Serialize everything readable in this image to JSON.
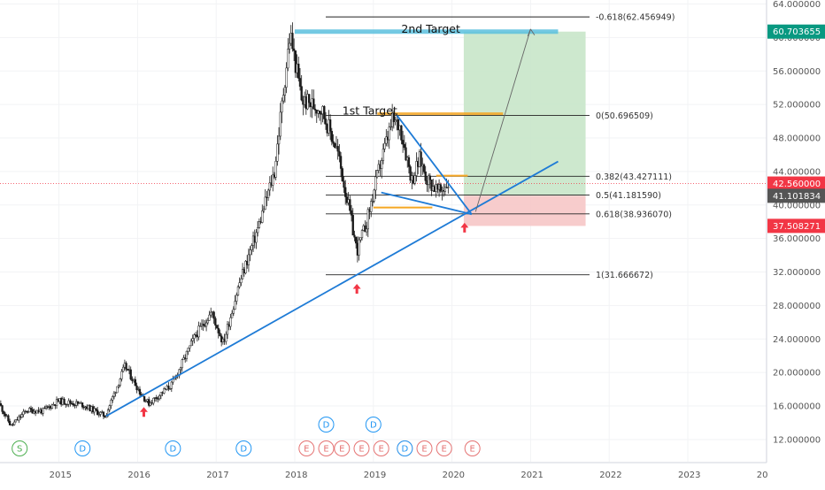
{
  "chart_data": {
    "type": "candlestick",
    "title": "",
    "xlabel": "",
    "ylabel": "",
    "x_ticks": [
      "2015",
      "2016",
      "2017",
      "2018",
      "2019",
      "2020",
      "2021",
      "2022",
      "2023",
      "20"
    ],
    "y_ticks": [
      "64.000000",
      "60.000000",
      "56.000000",
      "52.000000",
      "48.000000",
      "44.000000",
      "40.000000",
      "36.000000",
      "32.000000",
      "28.000000",
      "24.000000",
      "20.000000",
      "16.000000",
      "12.000000"
    ],
    "ylim": [
      10.5,
      65.2
    ],
    "xlim": [
      2014.25,
      2024.0
    ],
    "grid": true,
    "price_path": [
      [
        2014.25,
        16.3
      ],
      [
        2014.4,
        13.6
      ],
      [
        2014.6,
        15.5
      ],
      [
        2014.8,
        15.4
      ],
      [
        2015.0,
        16.6
      ],
      [
        2015.3,
        16.2
      ],
      [
        2015.6,
        14.8
      ],
      [
        2015.85,
        20.8
      ],
      [
        2016.05,
        17.5
      ],
      [
        2016.15,
        16.3
      ],
      [
        2016.45,
        18.6
      ],
      [
        2016.75,
        24.5
      ],
      [
        2016.95,
        27.2
      ],
      [
        2017.1,
        23.5
      ],
      [
        2017.3,
        30.5
      ],
      [
        2017.55,
        37.5
      ],
      [
        2017.75,
        44.0
      ],
      [
        2017.95,
        60.5
      ],
      [
        2018.1,
        52.5
      ],
      [
        2018.35,
        51.5
      ],
      [
        2018.55,
        46.5
      ],
      [
        2018.7,
        39.5
      ],
      [
        2018.8,
        34.5
      ],
      [
        2018.92,
        37.8
      ],
      [
        2019.1,
        45.0
      ],
      [
        2019.25,
        50.0
      ],
      [
        2019.35,
        49.4
      ],
      [
        2019.5,
        43.0
      ],
      [
        2019.6,
        45.5
      ],
      [
        2019.7,
        43.0
      ],
      [
        2019.85,
        41.5
      ],
      [
        2019.95,
        42.6
      ]
    ],
    "current_price": 42.56,
    "price_labels": [
      {
        "value": 60.703655,
        "text": "60.703655",
        "color": "#089981",
        "kind": "target"
      },
      {
        "value": 42.56,
        "text": "42.560000",
        "color": "#f23645",
        "kind": "current"
      },
      {
        "value": 41.101834,
        "text": "41.101834",
        "color": "#555555",
        "kind": "level"
      },
      {
        "value": 37.508271,
        "text": "37.508271",
        "color": "#f23645",
        "kind": "stop"
      }
    ],
    "fib_levels": [
      {
        "ratio": "-0.618",
        "price": 62.456949,
        "label": "-0.618(62.456949)"
      },
      {
        "ratio": "0",
        "price": 50.696509,
        "label": "0(50.696509)"
      },
      {
        "ratio": "0.382",
        "price": 43.427111,
        "label": "0.382(43.427111)"
      },
      {
        "ratio": "0.5",
        "price": 41.18159,
        "label": "0.5(41.181590)"
      },
      {
        "ratio": "0.618",
        "price": 38.93607,
        "label": "0.618(38.936070)"
      },
      {
        "ratio": "1",
        "price": 31.666672,
        "label": "1(31.666672)"
      }
    ],
    "annotations": [
      {
        "text": "2nd Target",
        "x": 2019.75,
        "price": 60.7
      },
      {
        "text": "1st Target",
        "x": 2019.0,
        "price": 50.9
      }
    ],
    "target_lines": [
      {
        "name": "2nd Target",
        "price": 60.7,
        "x1": 2018.0,
        "x2": 2021.35,
        "color": "#5bc0de"
      },
      {
        "name": "1st Target",
        "price": 50.9,
        "x1": 2019.05,
        "x2": 2020.65,
        "color": "#f5a623"
      }
    ],
    "position": {
      "entry": 41.1,
      "target": 60.7,
      "stop": 37.5,
      "x_start": 2020.15,
      "x_end": 2021.7
    },
    "trendlines": [
      {
        "name": "long-term-support",
        "from": [
          2015.6,
          14.8
        ],
        "to": [
          2021.35,
          45.2
        ]
      },
      {
        "name": "wedge-upper",
        "from": [
          2019.3,
          50.7
        ],
        "to": [
          2020.25,
          38.9
        ]
      },
      {
        "name": "wedge-lower",
        "from": [
          2019.1,
          41.5
        ],
        "to": [
          2020.25,
          38.9
        ]
      }
    ],
    "projection_arrow": {
      "from": [
        2020.3,
        39.2
      ],
      "to": [
        2021.0,
        61.0
      ]
    },
    "bounce_arrows": [
      {
        "x": 2016.08,
        "price": 16.3
      },
      {
        "x": 2018.79,
        "price": 31.0
      },
      {
        "x": 2020.16,
        "price": 38.3
      }
    ],
    "dividend_markers": [
      {
        "label": "D",
        "x": 2015.3,
        "row": "bottom"
      },
      {
        "label": "D",
        "x": 2016.45,
        "row": "bottom"
      },
      {
        "label": "D",
        "x": 2017.35,
        "row": "bottom"
      },
      {
        "label": "D",
        "x": 2018.4,
        "row": "top"
      },
      {
        "label": "D",
        "x": 2019.0,
        "row": "top"
      },
      {
        "label": "D",
        "x": 2019.4,
        "row": "bottom"
      }
    ],
    "earnings_markers": [
      {
        "label": "E",
        "x": 2018.15
      },
      {
        "label": "E",
        "x": 2018.4
      },
      {
        "label": "E",
        "x": 2018.6
      },
      {
        "label": "E",
        "x": 2018.85
      },
      {
        "label": "E",
        "x": 2019.1
      },
      {
        "label": "E",
        "x": 2019.4
      },
      {
        "label": "E",
        "x": 2019.65
      },
      {
        "label": "E",
        "x": 2019.9
      },
      {
        "label": "E",
        "x": 2020.26
      }
    ],
    "split_markers": [
      {
        "label": "S",
        "x": 2014.5
      }
    ],
    "colors": {
      "up": "#089981",
      "down": "#111111",
      "candle_body": "#1a1a1a",
      "trendline": "#1e7bd6",
      "profit_zone": "#c8e6c9",
      "loss_zone": "#f6c6c6",
      "fib_line": "#222222",
      "bounce_arrow": "#f23645",
      "dividend": "#2196f3",
      "earnings": "#e57373",
      "split": "#4caf50",
      "current_line": "#f23645"
    }
  }
}
